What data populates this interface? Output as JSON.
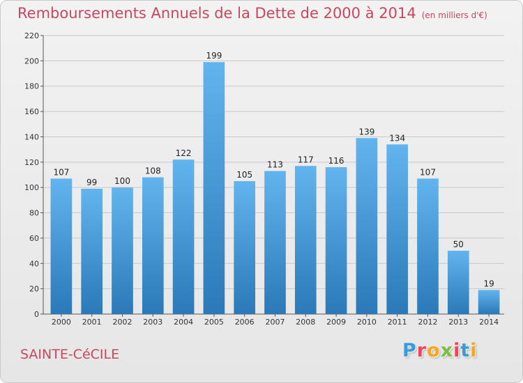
{
  "header": {
    "title": "Remboursements Annuels de la Dette de 2000 à 2014",
    "subtitle": "(en milliers d'€)"
  },
  "footer": {
    "commune": "SAINTE-CéCILE",
    "logo": "Proxiti",
    "logo_colors": [
      "#3a9bd8",
      "#e8485c",
      "#f6a623",
      "#7bbf3e",
      "#e8485c",
      "#3a9bd8",
      "#f6a623"
    ]
  },
  "colors": {
    "bar_top": "#62b4ee",
    "bar_bottom": "#2b79b8",
    "title": "#c8475e",
    "grid": "#c8c8c8"
  },
  "chart_data": {
    "type": "bar",
    "title": "Remboursements Annuels de la Dette de 2000 à 2014",
    "subtitle": "(en milliers d'€)",
    "categories": [
      "2000",
      "2001",
      "2002",
      "2003",
      "2004",
      "2005",
      "2006",
      "2007",
      "2008",
      "2009",
      "2010",
      "2011",
      "2012",
      "2013",
      "2014"
    ],
    "values": [
      107,
      99,
      100,
      108,
      122,
      199,
      105,
      113,
      117,
      116,
      139,
      134,
      107,
      50,
      19
    ],
    "xlabel": "",
    "ylabel": "",
    "ylim": [
      0,
      220
    ],
    "yticks": [
      0,
      20,
      40,
      60,
      80,
      100,
      120,
      140,
      160,
      180,
      200,
      220
    ],
    "grid": true,
    "legend": "none"
  }
}
